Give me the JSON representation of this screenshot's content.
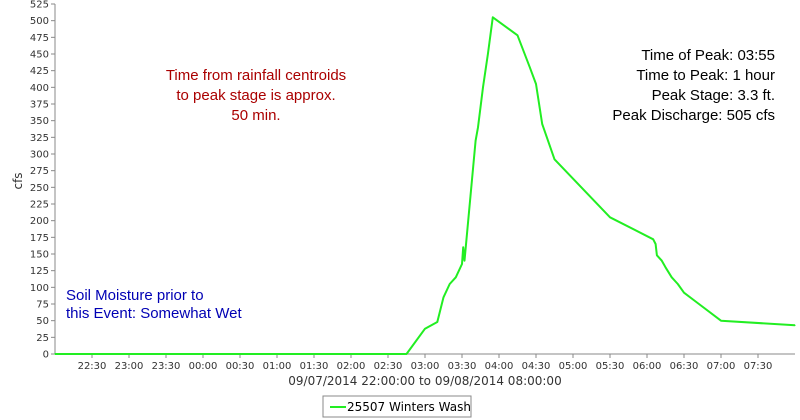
{
  "chart_data": {
    "type": "line",
    "title": "",
    "xlabel": "09/07/2014 22:00:00 to 09/08/2014 08:00:00",
    "ylabel": "cfs",
    "x_range": [
      "2014-09-07 22:00",
      "2014-09-08 08:00"
    ],
    "ylim": [
      0,
      525
    ],
    "y_ticks": [
      0,
      25,
      50,
      75,
      100,
      125,
      150,
      175,
      200,
      225,
      250,
      275,
      300,
      325,
      350,
      375,
      400,
      425,
      450,
      475,
      500,
      525
    ],
    "x_ticks": [
      "22:30",
      "23:00",
      "23:30",
      "00:00",
      "00:30",
      "01:00",
      "01:30",
      "02:00",
      "02:30",
      "03:00",
      "03:30",
      "04:00",
      "04:30",
      "05:00",
      "05:30",
      "06:00",
      "06:30",
      "07:00",
      "07:30"
    ],
    "grid": false,
    "legend": "bottom-center",
    "series": [
      {
        "name": "25507 Winters Wash",
        "color": "#22ee22",
        "x": [
          "2014-09-07 22:00",
          "2014-09-08 02:45",
          "2014-09-08 03:00",
          "2014-09-08 03:10",
          "2014-09-08 03:15",
          "2014-09-08 03:20",
          "2014-09-08 03:25",
          "2014-09-08 03:30",
          "2014-09-08 03:31",
          "2014-09-08 03:32",
          "2014-09-08 03:35",
          "2014-09-08 03:38",
          "2014-09-08 03:41",
          "2014-09-08 03:43",
          "2014-09-08 03:47",
          "2014-09-08 03:51",
          "2014-09-08 03:55",
          "2014-09-08 04:15",
          "2014-09-08 04:25",
          "2014-09-08 04:30",
          "2014-09-08 04:35",
          "2014-09-08 04:45",
          "2014-09-08 05:30",
          "2014-09-08 06:05",
          "2014-09-08 06:07",
          "2014-09-08 06:08",
          "2014-09-08 06:12",
          "2014-09-08 06:15",
          "2014-09-08 06:20",
          "2014-09-08 06:25",
          "2014-09-08 06:30",
          "2014-09-08 06:40",
          "2014-09-08 07:00",
          "2014-09-08 08:00"
        ],
        "values": [
          0,
          0,
          38,
          48,
          85,
          105,
          115,
          135,
          160,
          140,
          200,
          260,
          320,
          340,
          400,
          450,
          505,
          478,
          430,
          405,
          345,
          292,
          205,
          172,
          165,
          148,
          140,
          130,
          115,
          105,
          92,
          78,
          50,
          43
        ]
      }
    ],
    "annotations": {
      "centroid": [
        "Time from rainfall centroids",
        "to peak stage is approx.",
        "50 min."
      ],
      "peak": [
        "Time of Peak: 03:55",
        "Time to Peak: 1 hour",
        "Peak Stage: 3.3 ft.",
        "Peak Discharge: 505 cfs"
      ],
      "soil": [
        "Soil Moisture prior to",
        "this Event: Somewhat Wet"
      ]
    }
  }
}
